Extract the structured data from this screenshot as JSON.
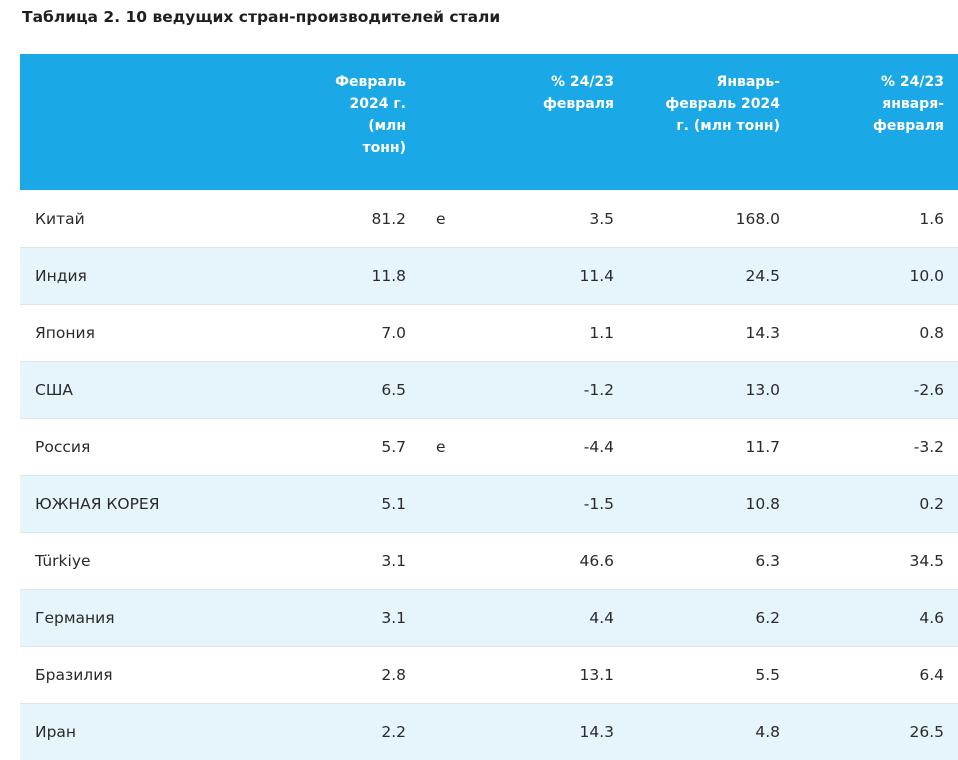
{
  "title": "Таблица 2. 10 ведущих стран-производителей стали",
  "headers": {
    "country": "",
    "feb_2024": "Февраль\n2024 г.\n(млн\nтонн)",
    "flag": "",
    "pct_feb": "% 24/23\nфевраля",
    "janfeb_2024": "Январь-\nфевраль 2024\nг. (млн тонн)",
    "pct_janfeb": "% 24/23\nянваря-\nфевраля"
  },
  "rows": [
    {
      "country": "Китай",
      "feb": "81.2",
      "flag": "e",
      "pct_feb": "3.5",
      "janfeb": "168.0",
      "pct_janfeb": "1.6"
    },
    {
      "country": "Индия",
      "feb": "11.8",
      "flag": "",
      "pct_feb": "11.4",
      "janfeb": "24.5",
      "pct_janfeb": "10.0"
    },
    {
      "country": "Япония",
      "feb": "7.0",
      "flag": "",
      "pct_feb": "1.1",
      "janfeb": "14.3",
      "pct_janfeb": "0.8"
    },
    {
      "country": "США",
      "feb": "6.5",
      "flag": "",
      "pct_feb": "-1.2",
      "janfeb": "13.0",
      "pct_janfeb": "-2.6"
    },
    {
      "country": "Россия",
      "feb": "5.7",
      "flag": "e",
      "pct_feb": "-4.4",
      "janfeb": "11.7",
      "pct_janfeb": "-3.2"
    },
    {
      "country": "ЮЖНАЯ КОРЕЯ",
      "feb": "5.1",
      "flag": "",
      "pct_feb": "-1.5",
      "janfeb": "10.8",
      "pct_janfeb": "0.2"
    },
    {
      "country": "Türkiye",
      "feb": "3.1",
      "flag": "",
      "pct_feb": "46.6",
      "janfeb": "6.3",
      "pct_janfeb": "34.5"
    },
    {
      "country": "Германия",
      "feb": "3.1",
      "flag": "",
      "pct_feb": "4.4",
      "janfeb": "6.2",
      "pct_janfeb": "4.6"
    },
    {
      "country": "Бразилия",
      "feb": "2.8",
      "flag": "",
      "pct_feb": "13.1",
      "janfeb": "5.5",
      "pct_janfeb": "6.4"
    },
    {
      "country": "Иран",
      "feb": "2.2",
      "flag": "",
      "pct_feb": "14.3",
      "janfeb": "4.8",
      "pct_janfeb": "26.5"
    }
  ],
  "colors": {
    "header_bg": "#1ba8e6",
    "alt_row_bg": "#e6f4fb",
    "header_text": "#ffffff"
  }
}
